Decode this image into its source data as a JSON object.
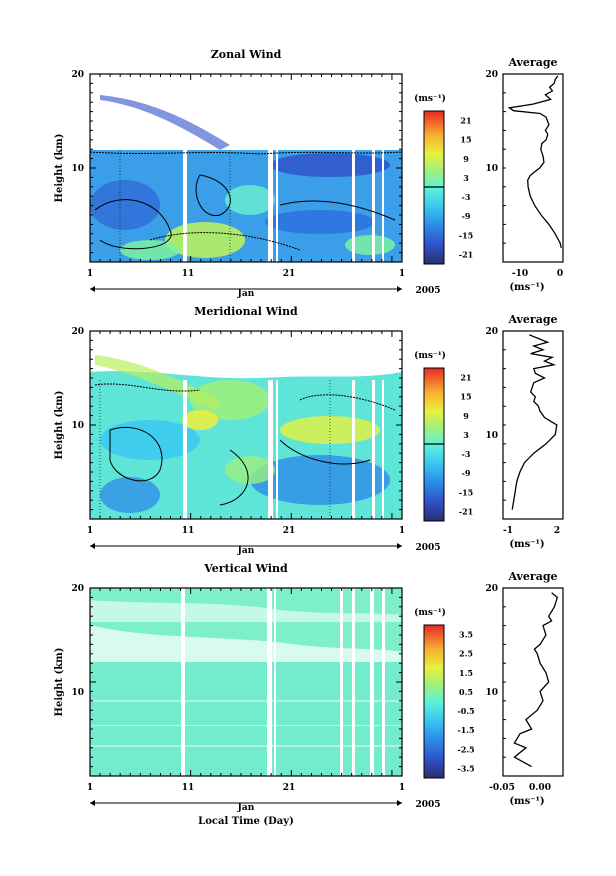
{
  "chart_data": [
    {
      "type": "heatmap",
      "title": "Zonal Wind",
      "ylabel": "Height (km)",
      "xlabel": "",
      "ylim": [
        0,
        20
      ],
      "y_ticks": [
        "20",
        "10"
      ],
      "x_ticks": [
        "1",
        "11",
        "21",
        "1"
      ],
      "month_label": "Jan",
      "year_label": "2005",
      "unit_label": "(ms⁻¹)",
      "colorbar_ticks": [
        "21",
        "15",
        "9",
        "3",
        "-3",
        "-9",
        "-15",
        "-21"
      ],
      "colorbar_range": [
        -24,
        24
      ],
      "profile": {
        "title": "Average",
        "xlabel": "(ms⁻¹)",
        "x_ticks": [
          "-10",
          "0"
        ],
        "y_ticks": [
          "20",
          "10"
        ],
        "xlim": [
          -16,
          1
        ],
        "ylim": [
          0,
          20
        ],
        "x": [
          0.5,
          0.2,
          -1.2,
          -3.0,
          -5.2,
          -7.0,
          -8.3,
          -8.9,
          -9.0,
          -8.3,
          -7.0,
          -5.6,
          -4.4,
          -4.6,
          -5.3,
          -5.0,
          -3.8,
          -3.3,
          -4.0,
          -3.0,
          -3.8,
          -5.5,
          -13.0,
          -14.2,
          -7.5,
          -2.5,
          -4.0,
          -2.0,
          -2.8,
          -1.5,
          -1.2,
          -0.5
        ],
        "y": [
          1.5,
          2.0,
          3.0,
          4.0,
          5.0,
          6.0,
          7.0,
          8.0,
          8.7,
          9.2,
          9.6,
          10.0,
          10.6,
          11.2,
          12.0,
          12.6,
          13.0,
          13.6,
          14.0,
          14.6,
          15.4,
          15.8,
          16.1,
          16.4,
          16.8,
          17.3,
          17.8,
          18.2,
          18.6,
          19.0,
          19.4,
          19.8
        ]
      }
    },
    {
      "type": "heatmap",
      "title": "Meridional Wind",
      "ylabel": "Height (km)",
      "xlabel": "Jan",
      "ylim": [
        0,
        20
      ],
      "y_ticks": [
        "20",
        "10"
      ],
      "x_ticks": [
        "1",
        "11",
        "21",
        "1"
      ],
      "month_label": "Jan",
      "year_label": "2005",
      "unit_label": "(ms⁻¹)",
      "colorbar_ticks": [
        "21",
        "15",
        "9",
        "3",
        "-3",
        "-9",
        "-15",
        "-21"
      ],
      "colorbar_range": [
        -24,
        24
      ],
      "profile": {
        "title": "Average",
        "xlabel": "(ms⁻¹)",
        "x_ticks": [
          "-1",
          "2"
        ],
        "y_ticks": [
          "20",
          "10"
        ],
        "xlim": [
          -1.5,
          2.4
        ],
        "ylim": [
          0,
          20
        ],
        "x": [
          -0.9,
          -0.8,
          -0.7,
          -0.6,
          -0.4,
          -0.1,
          0.5,
          1.3,
          1.9,
          2.0,
          1.2,
          0.9,
          0.8,
          0.5,
          0.6,
          0.3,
          0.4,
          0.5,
          1.2,
          0.6,
          0.5,
          1.8,
          1.2,
          1.7,
          0.3,
          1.1,
          0.5,
          1.4,
          0.8,
          0.2
        ],
        "y": [
          1.0,
          2.0,
          3.0,
          4.0,
          5.0,
          6.0,
          7.0,
          8.0,
          9.0,
          10.0,
          10.8,
          11.5,
          12.0,
          12.5,
          13.0,
          13.5,
          14.0,
          14.5,
          15.0,
          15.5,
          16.0,
          16.4,
          16.8,
          17.2,
          17.6,
          18.0,
          18.4,
          18.8,
          19.2,
          19.6
        ]
      }
    },
    {
      "type": "heatmap",
      "title": "Vertical Wind",
      "ylabel": "Height (km)",
      "xlabel": "Local Time (Day)",
      "ylim": [
        0,
        20
      ],
      "y_ticks": [
        "20",
        "10"
      ],
      "x_ticks": [
        "1",
        "11",
        "21",
        "1"
      ],
      "month_label": "Jan",
      "year_label": "2005",
      "unit_label": "(ms⁻¹)",
      "colorbar_ticks": [
        "3.5",
        "2.5",
        "1.5",
        "0.5",
        "-0.5",
        "-1.5",
        "-2.5",
        "-3.5"
      ],
      "colorbar_range": [
        -4,
        4
      ],
      "profile": {
        "title": "Average",
        "xlabel": "(ms⁻¹)",
        "x_ticks": [
          "-0.05",
          "0.00"
        ],
        "y_ticks": [
          "20",
          "10"
        ],
        "xlim": [
          -0.07,
          0.035
        ],
        "ylim": [
          0,
          20
        ],
        "x": [
          -0.02,
          -0.05,
          -0.03,
          -0.05,
          -0.04,
          -0.02,
          -0.03,
          -0.01,
          0.0,
          -0.005,
          0.01,
          0.005,
          -0.005,
          -0.01,
          -0.015,
          -0.005,
          0.0,
          0.005,
          0.0,
          0.015,
          0.01,
          0.02,
          0.025,
          0.015
        ],
        "y": [
          1.0,
          2.0,
          3.0,
          3.5,
          4.5,
          5.0,
          6.0,
          7.0,
          8.0,
          9.0,
          10.0,
          11.0,
          12.0,
          13.0,
          13.5,
          14.0,
          14.5,
          15.0,
          16.0,
          16.5,
          17.0,
          18.0,
          19.0,
          19.5
        ]
      }
    }
  ]
}
